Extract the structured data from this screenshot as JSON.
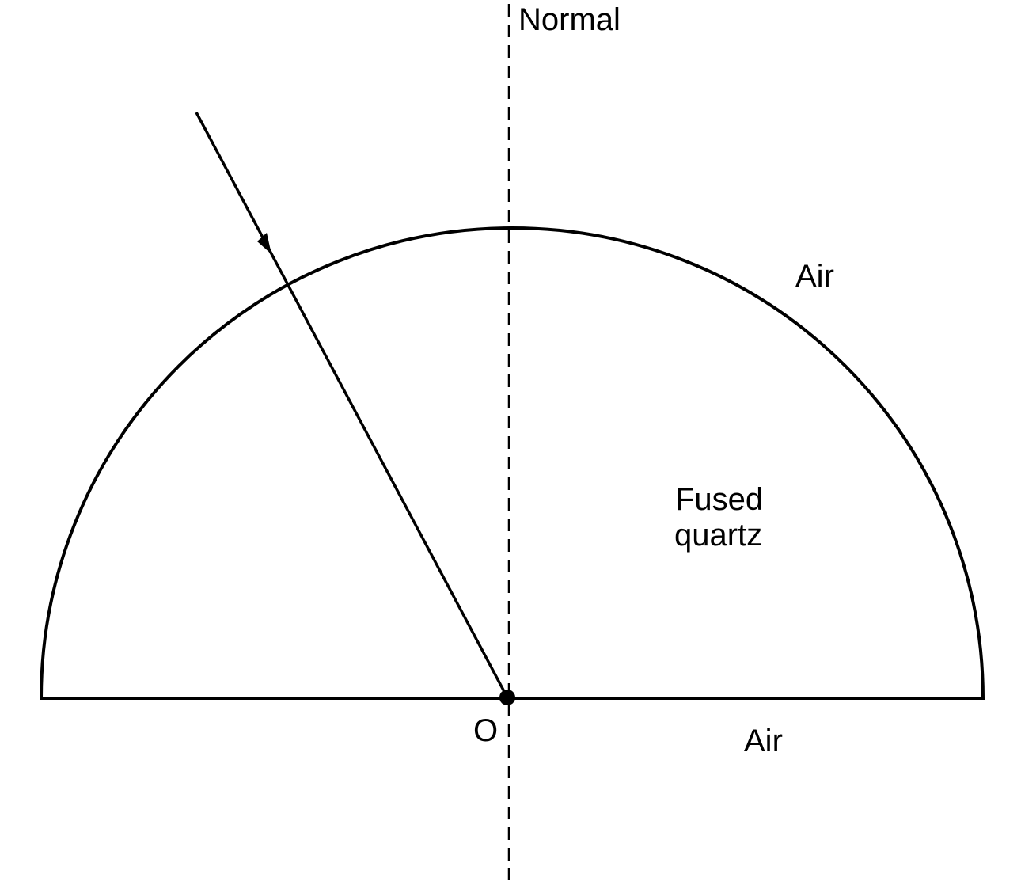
{
  "labels": {
    "normal": "Normal",
    "air_upper": "Air",
    "air_lower": "Air",
    "medium_line1": "Fused",
    "medium_line2": "quartz",
    "point": "O"
  },
  "colors": {
    "background": "#ffffff",
    "ink": "#000000"
  }
}
